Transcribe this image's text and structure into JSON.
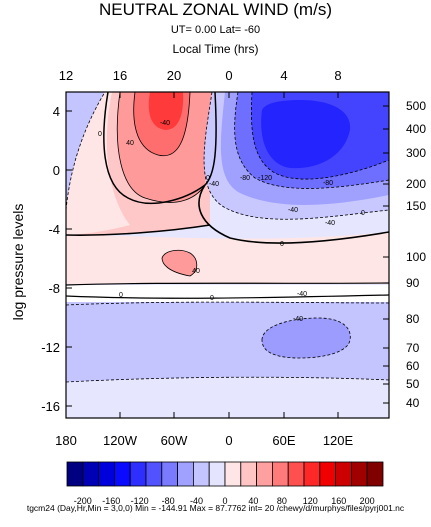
{
  "chart_data": {
    "type": "contour",
    "title": "NEUTRAL ZONAL WIND (m/s)",
    "subtitle": "UT=  0.00 Lat= -60",
    "top_axis_label": "Local Time (hrs)",
    "ylabel": "log pressure levels",
    "x_ticks": [
      "180",
      "120W",
      "60W",
      "0",
      "60E",
      "120E"
    ],
    "top_ticks": [
      "12",
      "16",
      "20",
      "0",
      "4",
      "8"
    ],
    "y_ticks": [
      "4",
      "0",
      "-4",
      "-8",
      "-12",
      "-16"
    ],
    "right_ticks": [
      "500",
      "400",
      "300",
      "200",
      "150",
      "100",
      "90",
      "80",
      "70",
      "60",
      "50",
      "40"
    ],
    "xlim": [
      -180,
      180
    ],
    "ylim": [
      -17,
      5
    ],
    "contour_interval": 20,
    "contour_labels": [
      "0",
      "40",
      "-40",
      "-80",
      "-120",
      "-80",
      "-40",
      "0",
      "0",
      "-40",
      "-40",
      "0",
      "40",
      "0",
      "0",
      "-40",
      "-40"
    ],
    "colorbar": {
      "labels": [
        "-200",
        "-160",
        "-120",
        "-80",
        "-40",
        "0",
        "40",
        "80",
        "120",
        "160",
        "200"
      ],
      "colors": [
        "#000080",
        "#0000b4",
        "#0000dc",
        "#0a0aff",
        "#2e2eff",
        "#5252ff",
        "#7a7aff",
        "#a0a0ff",
        "#c4c4ff",
        "#e4e4ff",
        "#ffe6e6",
        "#ffc4c4",
        "#ffa0a0",
        "#ff7a7a",
        "#ff5050",
        "#ff2828",
        "#f00000",
        "#cc0000",
        "#a00000",
        "#800000"
      ]
    },
    "footer": "tgcm24 (Day,Hr,Min = 3,0,0) Min = -144.91  Max  = 87.7762 int= 20 /chewy/d/murphys/files/pyrj001.nc"
  }
}
